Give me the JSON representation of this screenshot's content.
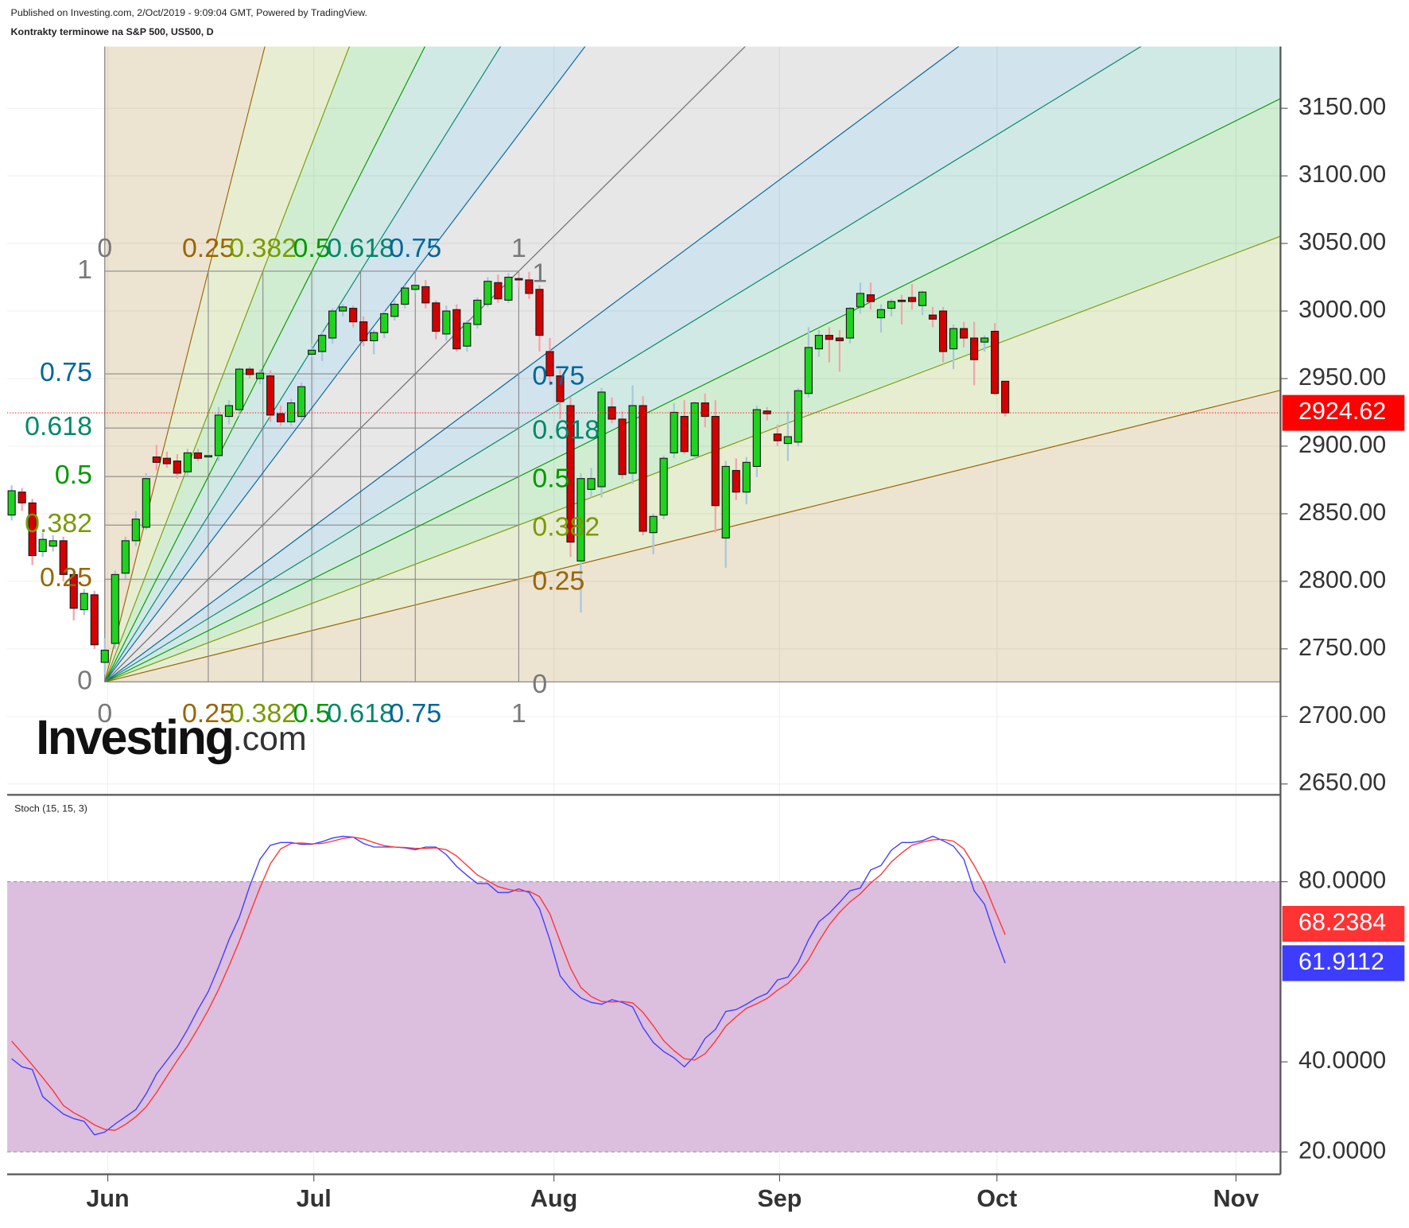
{
  "header": {
    "published": "Published on Investing.com, 2/Oct/2019 - 9:09:04 GMT, Powered by TradingView.",
    "title": "Kontrakty terminowe na S&P 500, US500, D"
  },
  "logo": {
    "name": "Investing",
    "suffix": ".com"
  },
  "chart_data": [
    {
      "type": "candlestick",
      "xlim": [
        -0.43,
        122.6
      ],
      "ylim": [
        2642.0,
        3195.7
      ],
      "yticks": [
        {
          "value": 2650,
          "label": "2650.00"
        },
        {
          "value": 2700,
          "label": "2700.00"
        },
        {
          "value": 2750,
          "label": "2750.00"
        },
        {
          "value": 2800,
          "label": "2800.00"
        },
        {
          "value": 2850,
          "label": "2850.00"
        },
        {
          "value": 2900,
          "label": "2900.00"
        },
        {
          "value": 2950,
          "label": "2950.00"
        },
        {
          "value": 3000,
          "label": "3000.00"
        },
        {
          "value": 3050,
          "label": "3050.00"
        },
        {
          "value": 3100,
          "label": "3100.00"
        },
        {
          "value": 3150,
          "label": "3150.00"
        }
      ],
      "grid": true,
      "up_color": "#1ed31e",
      "down_color": "#d40000",
      "up_wick": "#a8c8dc",
      "down_wick": "#f4a4ac",
      "last_color": "#ff0000",
      "ohlc": [
        [
          2849,
          2871,
          2845,
          2867
        ],
        [
          2866,
          2869,
          2852,
          2858
        ],
        [
          2858,
          2861,
          2812,
          2819
        ],
        [
          2822,
          2836,
          2818,
          2831
        ],
        [
          2826,
          2834,
          2822,
          2830
        ],
        [
          2830,
          2833,
          2800,
          2805
        ],
        [
          2805,
          2808,
          2771,
          2780
        ],
        [
          2779,
          2794,
          2775,
          2791
        ],
        [
          2790,
          2793,
          2750,
          2753
        ],
        [
          2740,
          2758,
          2731,
          2749
        ],
        [
          2754,
          2808,
          2750,
          2805
        ],
        [
          2806,
          2833,
          2802,
          2830
        ],
        [
          2830,
          2852,
          2826,
          2846
        ],
        [
          2840,
          2880,
          2838,
          2876
        ],
        [
          2892,
          2901,
          2882,
          2888
        ],
        [
          2891,
          2896,
          2884,
          2887
        ],
        [
          2889,
          2894,
          2876,
          2880
        ],
        [
          2881,
          2898,
          2878,
          2895
        ],
        [
          2895,
          2898,
          2889,
          2891
        ],
        [
          2892,
          2895,
          2889,
          2893
        ],
        [
          2893,
          2929,
          2889,
          2923
        ],
        [
          2922,
          2934,
          2916,
          2930
        ],
        [
          2927,
          2958,
          2922,
          2957
        ],
        [
          2957,
          2959,
          2950,
          2953
        ],
        [
          2950,
          2957,
          2946,
          2954
        ],
        [
          2952,
          2956,
          2918,
          2923
        ],
        [
          2924,
          2930,
          2915,
          2918
        ],
        [
          2918,
          2935,
          2915,
          2932
        ],
        [
          2922,
          2947,
          2919,
          2944
        ],
        [
          2968,
          2976,
          2965,
          2971
        ],
        [
          2970,
          2985,
          2963,
          2982
        ],
        [
          2980,
          3002,
          2976,
          3000
        ],
        [
          3000,
          3005,
          2996,
          3003
        ],
        [
          3002,
          3004,
          2988,
          2992
        ],
        [
          2992,
          2996,
          2974,
          2978
        ],
        [
          2978,
          2986,
          2968,
          2984
        ],
        [
          2984,
          3000,
          2980,
          2998
        ],
        [
          2996,
          3008,
          2993,
          3005
        ],
        [
          3005,
          3019,
          3002,
          3017
        ],
        [
          3016,
          3022,
          3013,
          3019
        ],
        [
          3018,
          3023,
          3002,
          3006
        ],
        [
          3006,
          3008,
          2979,
          2985
        ],
        [
          2983,
          3004,
          2978,
          3000
        ],
        [
          3001,
          3005,
          2970,
          2972
        ],
        [
          2974,
          2993,
          2970,
          2991
        ],
        [
          2990,
          3010,
          2987,
          3008
        ],
        [
          3005,
          3025,
          3003,
          3022
        ],
        [
          3021,
          3027,
          3006,
          3009
        ],
        [
          3008,
          3028,
          3006,
          3025
        ],
        [
          3024,
          3028,
          3017,
          3023
        ],
        [
          3023,
          3029,
          3009,
          3013
        ],
        [
          3016,
          3019,
          2970,
          2982
        ],
        [
          2970,
          2980,
          2945,
          2952
        ],
        [
          2952,
          2957,
          2920,
          2933
        ],
        [
          2930,
          2936,
          2818,
          2829
        ],
        [
          2815,
          2880,
          2777,
          2876
        ],
        [
          2868,
          2884,
          2862,
          2876
        ],
        [
          2870,
          2943,
          2862,
          2940
        ],
        [
          2929,
          2936,
          2917,
          2920
        ],
        [
          2920,
          2926,
          2876,
          2879
        ],
        [
          2880,
          2945,
          2872,
          2930
        ],
        [
          2930,
          2937,
          2834,
          2837
        ],
        [
          2836,
          2850,
          2820,
          2848
        ],
        [
          2849,
          2893,
          2846,
          2891
        ],
        [
          2895,
          2932,
          2891,
          2925
        ],
        [
          2922,
          2934,
          2894,
          2896
        ],
        [
          2893,
          2933,
          2890,
          2932
        ],
        [
          2932,
          2939,
          2914,
          2922
        ],
        [
          2922,
          2934,
          2836,
          2856
        ],
        [
          2832,
          2889,
          2810,
          2885
        ],
        [
          2882,
          2891,
          2860,
          2866
        ],
        [
          2866,
          2892,
          2857,
          2888
        ],
        [
          2885,
          2930,
          2877,
          2927
        ],
        [
          2926,
          2929,
          2919,
          2924
        ],
        [
          2909,
          2916,
          2900,
          2904
        ],
        [
          2902,
          2926,
          2889,
          2907
        ],
        [
          2903,
          2943,
          2900,
          2941
        ],
        [
          2939,
          2988,
          2936,
          2973
        ],
        [
          2972,
          2986,
          2966,
          2982
        ],
        [
          2982,
          2988,
          2962,
          2979
        ],
        [
          2980,
          2986,
          2955,
          2978
        ],
        [
          2980,
          3003,
          2976,
          3002
        ],
        [
          3003,
          3021,
          2998,
          3013
        ],
        [
          3012,
          3021,
          3001,
          3007
        ],
        [
          2995,
          3005,
          2984,
          3001
        ],
        [
          3002,
          3009,
          2996,
          3007
        ],
        [
          3008,
          3012,
          2990,
          3007
        ],
        [
          3010,
          3020,
          3001,
          3007
        ],
        [
          3004,
          3015,
          2997,
          3014
        ],
        [
          2997,
          3003,
          2988,
          2994
        ],
        [
          3000,
          3003,
          2962,
          2970
        ],
        [
          2972,
          2990,
          2957,
          2987
        ],
        [
          2987,
          2992,
          2973,
          2980
        ],
        [
          2980,
          2992,
          2945,
          2964
        ],
        [
          2977,
          2982,
          2970,
          2980
        ],
        [
          2985,
          2991,
          2938,
          2939
        ],
        [
          2948,
          2948,
          2922,
          2924.62
        ]
      ],
      "gann": {
        "x": [
          9,
          49
        ],
        "price": [
          2725.5,
          3029.5
        ],
        "levels": [
          0,
          0.25,
          0.382,
          0.5,
          0.618,
          0.75,
          1
        ],
        "colors": [
          "#787878",
          "#996600",
          "#7a9a01",
          "#009900",
          "#00876a",
          "#006699",
          "#787878"
        ]
      }
    },
    {
      "type": "line",
      "title": "Stoch (15, 15, 3)",
      "xlim": [
        -0.43,
        122.6
      ],
      "ylim": [
        15.03,
        99.3
      ],
      "xticks": [
        {
          "value": 9.29,
          "label": "Jun"
        },
        {
          "value": 29.2,
          "label": "Jul"
        },
        {
          "value": 52.4,
          "label": "Aug"
        },
        {
          "value": 74.2,
          "label": "Sep"
        },
        {
          "value": 95.2,
          "label": "Oct"
        },
        {
          "value": 118.3,
          "label": "Nov"
        }
      ],
      "yticks": [
        {
          "value": 20,
          "label": "20.0000"
        },
        {
          "value": 40,
          "label": "40.0000"
        },
        {
          "value": 80,
          "label": "80.0000"
        }
      ],
      "band": [
        20,
        80
      ],
      "band_color": "#dcbedf",
      "grid": true,
      "series": [
        {
          "color": "#3d3dff",
          "values": [
            40.7,
            38.9,
            38.3,
            32.3,
            30.3,
            28.4,
            27.4,
            26.8,
            23.8,
            24.4,
            26.2,
            27.8,
            29.4,
            32.9,
            37.3,
            40.3,
            43.3,
            47.2,
            51.6,
            55.6,
            61.1,
            67.1,
            72.1,
            79.0,
            85.0,
            88.1,
            88.7,
            88.7,
            88.3,
            88.3,
            88.9,
            89.7,
            90.1,
            89.9,
            88.5,
            87.7,
            87.7,
            87.7,
            87.5,
            87.1,
            87.7,
            87.7,
            86.0,
            83.4,
            81.4,
            79.6,
            79.6,
            77.6,
            77.6,
            78.4,
            77.6,
            74.0,
            67.1,
            59.1,
            56.2,
            54.2,
            53.2,
            52.8,
            53.8,
            53.2,
            52.2,
            47.6,
            44.3,
            42.3,
            40.9,
            38.9,
            41.3,
            45.2,
            47.2,
            51.2,
            51.6,
            52.8,
            54.2,
            55.2,
            58.2,
            58.8,
            62.1,
            67.1,
            71.1,
            73.0,
            75.4,
            78.0,
            78.6,
            82.6,
            83.6,
            87.0,
            88.7,
            88.7,
            89.1,
            90.1,
            89.1,
            87.9,
            85.0,
            78.0,
            75.0,
            68.1,
            61.9112
          ]
        },
        {
          "color": "#ff3333",
          "values": [
            44.6,
            42.0,
            39.3,
            36.5,
            33.6,
            30.3,
            28.7,
            27.5,
            26.0,
            25.0,
            24.8,
            26.1,
            27.8,
            30.0,
            33.2,
            36.8,
            40.3,
            43.6,
            47.4,
            51.5,
            56.1,
            61.3,
            66.8,
            72.8,
            78.7,
            84.0,
            87.3,
            88.5,
            88.6,
            88.4,
            88.5,
            89.0,
            89.6,
            89.9,
            89.5,
            88.7,
            88.0,
            87.7,
            87.6,
            87.4,
            87.4,
            87.5,
            87.1,
            85.7,
            83.6,
            81.5,
            80.2,
            78.9,
            78.3,
            77.9,
            77.9,
            76.7,
            72.9,
            66.7,
            60.8,
            56.5,
            54.5,
            53.4,
            53.3,
            53.4,
            53.1,
            51.0,
            48.0,
            44.7,
            42.5,
            40.7,
            40.4,
            41.8,
            44.6,
            47.9,
            50.0,
            51.9,
            52.9,
            54.1,
            55.9,
            57.4,
            59.7,
            62.7,
            66.8,
            70.4,
            73.2,
            75.5,
            77.3,
            79.7,
            81.6,
            84.4,
            86.4,
            88.1,
            88.8,
            89.3,
            89.4,
            89.0,
            87.3,
            83.6,
            79.3,
            73.7,
            68.2384
          ]
        }
      ]
    }
  ]
}
